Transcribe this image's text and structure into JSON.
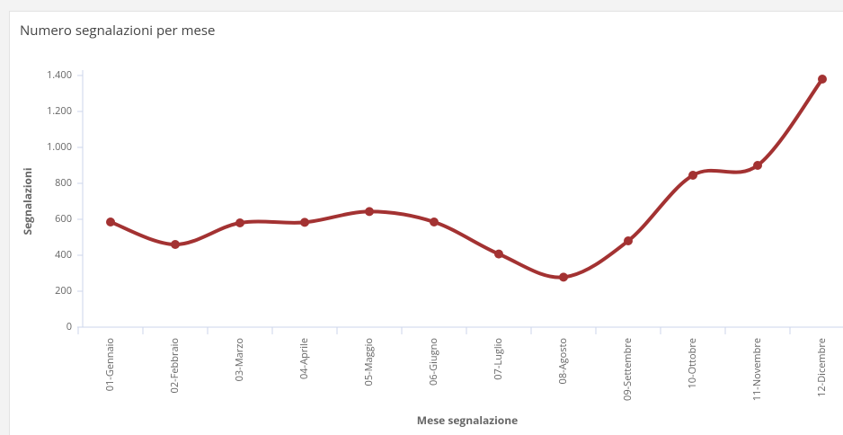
{
  "chart_data": {
    "type": "line",
    "title": "Numero segnalazioni per mese",
    "x_label": "Mese segnalazione",
    "y_label": "Segnalazioni",
    "categories": [
      "01-Gennaio",
      "02-Febbraio",
      "03-Marzo",
      "04-Aprile",
      "05-Maggio",
      "06-Giugno",
      "07-Luglio",
      "08-Agosto",
      "09-Settembre",
      "10-Ottobre",
      "11-Novembre",
      "12-Dicembre"
    ],
    "values": [
      585,
      460,
      580,
      583,
      643,
      585,
      407,
      278,
      480,
      845,
      900,
      1380
    ],
    "color": "#a33232",
    "ylim": [
      0,
      1400
    ],
    "yticks": [
      0,
      200,
      400,
      600,
      800,
      {
        "value": 1000,
        "label": "1.000"
      },
      {
        "value": 1200,
        "label": "1.200"
      },
      {
        "value": 1400,
        "label": "1.400"
      }
    ],
    "grid": false
  }
}
